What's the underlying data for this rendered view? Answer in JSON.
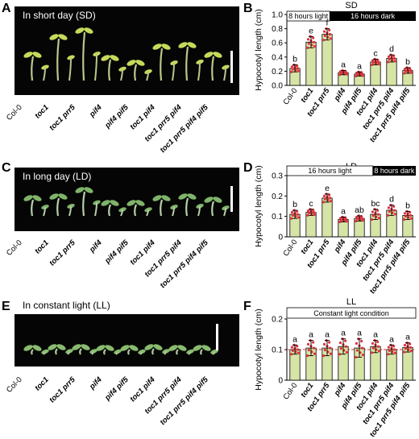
{
  "panels": {
    "A": {
      "letter": "A",
      "title": "In short day (SD)"
    },
    "B": {
      "letter": "B"
    },
    "C": {
      "letter": "C",
      "title": "In long day (LD)"
    },
    "D": {
      "letter": "D"
    },
    "E": {
      "letter": "E",
      "title": "In constant light (LL)"
    },
    "F": {
      "letter": "F"
    }
  },
  "genotypes": [
    "Col-0",
    "toc1",
    "toc1 prr5",
    "pif4",
    "pif4 pif5",
    "toc1 pif4",
    "toc1 prr5 pif4",
    "toc1 prr5 pif4 pif5"
  ],
  "colors": {
    "bar_fill": "#d6e4a6",
    "dot": "#e0303a",
    "photo_bg": "#050505",
    "bar_light": "#ffffff",
    "bar_dark": "#000000"
  },
  "chart_data": [
    {
      "type": "bar",
      "title": "SD",
      "ylabel": "Hypocotyl length (cm)",
      "categories": [
        "Col-0",
        "toc1",
        "toc1 prr5",
        "pif4",
        "pif4 pif5",
        "toc1 pif4",
        "toc1 prr5 pif4",
        "toc1 prr5 pif4 pif5"
      ],
      "values": [
        0.24,
        0.61,
        0.72,
        0.18,
        0.16,
        0.33,
        0.38,
        0.21
      ],
      "errors": [
        0.05,
        0.08,
        0.08,
        0.03,
        0.03,
        0.04,
        0.05,
        0.04
      ],
      "letters": [
        "b",
        "e",
        "f",
        "a",
        "a",
        "c",
        "d",
        "b"
      ],
      "ylim": [
        0,
        1.0
      ],
      "yticks": [
        "0.0",
        "0.2",
        "0.4",
        "0.6",
        "0.8",
        "1.0"
      ],
      "yticks_num": [
        0,
        0.2,
        0.4,
        0.6,
        0.8,
        1.0
      ],
      "photoperiod": {
        "light": "8 hours light",
        "dark": "16 hours dark",
        "light_fraction": 0.333
      }
    },
    {
      "type": "bar",
      "title": "LD",
      "ylabel": "Hypocotyl length (cm)",
      "categories": [
        "Col-0",
        "toc1",
        "toc1 prr5",
        "pif4",
        "pif4 pif5",
        "toc1 pif4",
        "toc1 prr5 pif4",
        "toc1 prr5 pif4 pif5"
      ],
      "values": [
        0.11,
        0.12,
        0.19,
        0.085,
        0.09,
        0.11,
        0.13,
        0.105
      ],
      "errors": [
        0.02,
        0.015,
        0.02,
        0.012,
        0.013,
        0.025,
        0.025,
        0.02
      ],
      "letters": [
        "b",
        "c",
        "e",
        "a",
        "ab",
        "bc",
        "d",
        "b"
      ],
      "ylim": [
        0,
        0.3
      ],
      "yticks": [
        "0",
        "0.1",
        "0.2",
        "0.3"
      ],
      "yticks_num": [
        0,
        0.1,
        0.2,
        0.3
      ],
      "photoperiod": {
        "light": "16 hours light",
        "dark": "8 hours dark",
        "light_fraction": 0.667
      }
    },
    {
      "type": "bar",
      "title": "LL",
      "ylabel": "Hypocotyl length (cm)",
      "categories": [
        "Col-0",
        "toc1",
        "toc1 prr5",
        "pif4",
        "pif4 pif5",
        "toc1 pif4",
        "toc1 prr5 pif4",
        "toc1 prr5 pif4 pif5"
      ],
      "values": [
        0.1,
        0.105,
        0.105,
        0.11,
        0.105,
        0.11,
        0.1,
        0.107
      ],
      "errors": [
        0.015,
        0.025,
        0.025,
        0.025,
        0.03,
        0.02,
        0.015,
        0.015
      ],
      "letters": [
        "a",
        "a",
        "a",
        "a",
        "a",
        "a",
        "a",
        "a"
      ],
      "ylim": [
        0,
        0.2
      ],
      "yticks": [
        "0",
        "0.1",
        "0.2"
      ],
      "yticks_num": [
        0,
        0.1,
        0.2
      ],
      "baseline_dashed": 0.1,
      "photoperiod": {
        "light": "Constant light condition",
        "dark": "",
        "light_fraction": 1.0
      }
    }
  ]
}
